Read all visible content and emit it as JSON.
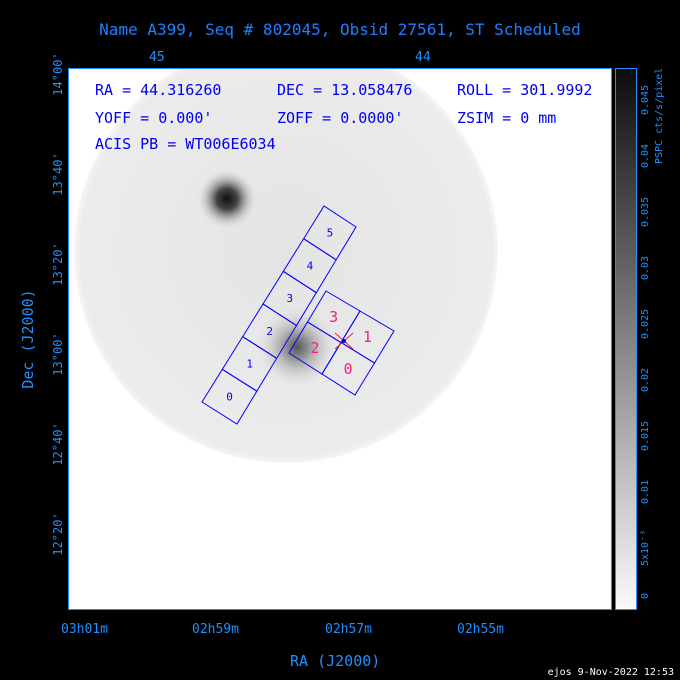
{
  "title": "Name A399, Seq # 802045, Obsid 27561, ST Scheduled",
  "info": {
    "ra": "RA = 44.316260",
    "dec": "DEC = 13.058476",
    "roll": "ROLL = 301.9992",
    "yoff": "YOFF =   0.000'",
    "zoff": "ZOFF =  0.0000'",
    "zsim": "ZSIM = 0 mm",
    "acis": "ACIS PB = WT006E6034"
  },
  "top_ticks": [
    "45",
    "44"
  ],
  "bottom_ticks": [
    "03h01m",
    "02h59m",
    "02h57m",
    "02h55m"
  ],
  "left_ticks": [
    "14°00'",
    "13°40'",
    "13°20'",
    "13°00'",
    "12°40'",
    "12°20'"
  ],
  "xlabel": "RA (J2000)",
  "ylabel": "Dec (J2000)",
  "colorbar": {
    "label": "PSPC cts/s/pixel",
    "ticks": [
      "0",
      "5x10⁻³",
      "0.01",
      "0.015",
      "0.02",
      "0.025",
      "0.03",
      "0.035",
      "0.04",
      "0.045"
    ]
  },
  "chips_s": [
    "0",
    "1",
    "2",
    "3",
    "4",
    "5"
  ],
  "chips_i": [
    "0",
    "1",
    "2",
    "3"
  ],
  "colors": {
    "axis": "#1e90ff",
    "chips": "#0000ff",
    "aimpoint_chips": "#ff1a8c"
  },
  "footer": "ejos  9-Nov-2022 12:53"
}
